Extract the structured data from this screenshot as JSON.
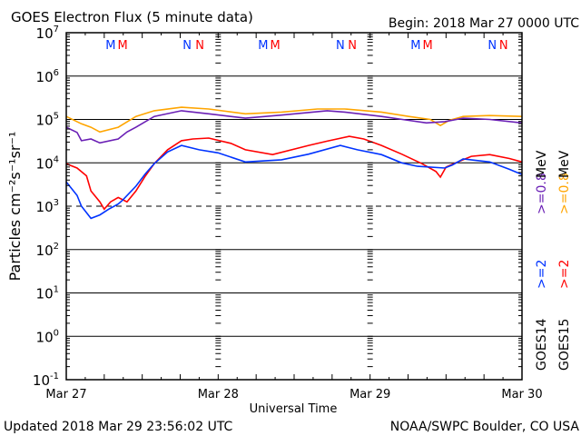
{
  "chart_data": {
    "type": "line",
    "title": "GOES Electron Flux (5 minute data)",
    "begin": "Begin: 2018 Mar 27 0000 UTC",
    "xlabel": "Universal Time",
    "ylabel": "Particles cm⁻²s⁻¹sr⁻¹",
    "x_unit": "hours since begin",
    "xlim": [
      0,
      72
    ],
    "ylim_log10": [
      -1,
      7
    ],
    "yscale": "log",
    "x_ticks": [
      {
        "hour": 0,
        "label": "Mar 27"
      },
      {
        "hour": 24,
        "label": "Mar 28"
      },
      {
        "hour": 48,
        "label": "Mar 29"
      },
      {
        "hour": 72,
        "label": "Mar 30"
      }
    ],
    "y_ticks": [
      {
        "exp": 7,
        "base": "10",
        "sup": "7"
      },
      {
        "exp": 6,
        "base": "10",
        "sup": "6"
      },
      {
        "exp": 5,
        "base": "10",
        "sup": "5"
      },
      {
        "exp": 4,
        "base": "10",
        "sup": "4"
      },
      {
        "exp": 3,
        "base": "10",
        "sup": "3"
      },
      {
        "exp": 2,
        "base": "10",
        "sup": "2"
      },
      {
        "exp": 1,
        "base": "10",
        "sup": "1"
      },
      {
        "exp": 0,
        "base": "10",
        "sup": "0"
      },
      {
        "exp": -1,
        "base": "10",
        "sup": "-1"
      }
    ],
    "threshold_log10": 3,
    "series": [
      {
        "name": "GOES15 >=0.8 MeV",
        "color": "#ffa500",
        "points": [
          [
            0,
            5.07
          ],
          [
            2.4,
            4.9
          ],
          [
            3.9,
            4.82
          ],
          [
            5.3,
            4.71
          ],
          [
            8.2,
            4.82
          ],
          [
            11,
            5.07
          ],
          [
            13.9,
            5.2
          ],
          [
            18.2,
            5.28
          ],
          [
            22.5,
            5.24
          ],
          [
            28.3,
            5.13
          ],
          [
            34,
            5.17
          ],
          [
            39.7,
            5.24
          ],
          [
            44,
            5.24
          ],
          [
            49.8,
            5.17
          ],
          [
            54.1,
            5.07
          ],
          [
            57.5,
            5.0
          ],
          [
            59.1,
            4.86
          ],
          [
            60.5,
            4.98
          ],
          [
            62.7,
            5.07
          ],
          [
            66.9,
            5.09
          ],
          [
            72,
            5.07
          ]
        ]
      },
      {
        "name": "GOES14 >=0.8 MeV",
        "color": "#6a1fb5",
        "points": [
          [
            0,
            4.82
          ],
          [
            1.7,
            4.7
          ],
          [
            2.4,
            4.51
          ],
          [
            3.9,
            4.55
          ],
          [
            5.3,
            4.46
          ],
          [
            8.2,
            4.55
          ],
          [
            9.6,
            4.71
          ],
          [
            11,
            4.82
          ],
          [
            13.9,
            5.07
          ],
          [
            18.2,
            5.2
          ],
          [
            22.5,
            5.13
          ],
          [
            28.3,
            5.03
          ],
          [
            34,
            5.1
          ],
          [
            41.2,
            5.2
          ],
          [
            44,
            5.17
          ],
          [
            49.8,
            5.07
          ],
          [
            54.1,
            4.98
          ],
          [
            56.9,
            4.92
          ],
          [
            59.8,
            4.95
          ],
          [
            62.7,
            5.03
          ],
          [
            66.9,
            5.0
          ],
          [
            72,
            4.92
          ]
        ]
      },
      {
        "name": "GOES15 >=2 MeV",
        "color": "#ff0000",
        "points": [
          [
            0,
            3.98
          ],
          [
            1.7,
            3.88
          ],
          [
            3.2,
            3.7
          ],
          [
            3.9,
            3.35
          ],
          [
            5.3,
            3.1
          ],
          [
            6.0,
            2.93
          ],
          [
            7,
            3.1
          ],
          [
            8.2,
            3.2
          ],
          [
            9.6,
            3.1
          ],
          [
            11,
            3.35
          ],
          [
            12.5,
            3.7
          ],
          [
            13.9,
            3.98
          ],
          [
            16,
            4.3
          ],
          [
            18.2,
            4.51
          ],
          [
            20,
            4.55
          ],
          [
            22.5,
            4.57
          ],
          [
            26,
            4.45
          ],
          [
            28.3,
            4.3
          ],
          [
            32.6,
            4.19
          ],
          [
            38.3,
            4.4
          ],
          [
            41.2,
            4.5
          ],
          [
            44.7,
            4.61
          ],
          [
            47,
            4.55
          ],
          [
            49.8,
            4.4
          ],
          [
            53,
            4.2
          ],
          [
            56.2,
            3.98
          ],
          [
            58.4,
            3.8
          ],
          [
            59.1,
            3.67
          ],
          [
            60,
            3.9
          ],
          [
            61.2,
            3.98
          ],
          [
            64,
            4.15
          ],
          [
            66.9,
            4.19
          ],
          [
            70,
            4.1
          ],
          [
            72,
            4.02
          ]
        ]
      },
      {
        "name": "GOES14 >=2 MeV",
        "color": "#0033ff",
        "points": [
          [
            0,
            3.56
          ],
          [
            1.7,
            3.25
          ],
          [
            2.4,
            3.0
          ],
          [
            3.9,
            2.72
          ],
          [
            5.3,
            2.8
          ],
          [
            6.7,
            2.93
          ],
          [
            8.2,
            3.05
          ],
          [
            8.9,
            3.14
          ],
          [
            11,
            3.46
          ],
          [
            12.5,
            3.75
          ],
          [
            13.9,
            3.98
          ],
          [
            16,
            4.25
          ],
          [
            18.2,
            4.4
          ],
          [
            21,
            4.3
          ],
          [
            24,
            4.23
          ],
          [
            28.3,
            4.02
          ],
          [
            34,
            4.07
          ],
          [
            38.3,
            4.2
          ],
          [
            43.3,
            4.4
          ],
          [
            46,
            4.3
          ],
          [
            49.8,
            4.19
          ],
          [
            53,
            4.0
          ],
          [
            55.5,
            3.92
          ],
          [
            59.8,
            3.88
          ],
          [
            61,
            3.95
          ],
          [
            62.7,
            4.09
          ],
          [
            66.9,
            4.02
          ],
          [
            70,
            3.85
          ],
          [
            72,
            3.73
          ]
        ]
      }
    ],
    "legend": [
      {
        "text": "GOES14",
        "color": "#000000"
      },
      {
        "text": ">=2",
        "color": "#0033ff"
      },
      {
        "text": ">=0.8",
        "color": "#6a1fb5"
      },
      {
        "text": "MeV",
        "color": "#000000"
      },
      {
        "text": "GOES15",
        "color": "#000000"
      },
      {
        "text": ">=2",
        "color": "#ff0000"
      },
      {
        "text": ">=0.8",
        "color": "#ffa500"
      },
      {
        "text": "MeV",
        "color": "#000000"
      }
    ],
    "annotations": [
      {
        "text": "M",
        "hour": 7.0,
        "color": "#0033ff"
      },
      {
        "text": "M",
        "hour": 8.9,
        "color": "#ff0000"
      },
      {
        "text": "N",
        "hour": 19.1,
        "color": "#0033ff"
      },
      {
        "text": "N",
        "hour": 21.1,
        "color": "#ff0000"
      },
      {
        "text": "M",
        "hour": 31.1,
        "color": "#0033ff"
      },
      {
        "text": "M",
        "hour": 33.0,
        "color": "#ff0000"
      },
      {
        "text": "N",
        "hour": 43.3,
        "color": "#0033ff"
      },
      {
        "text": "N",
        "hour": 45.2,
        "color": "#ff0000"
      },
      {
        "text": "M",
        "hour": 55.2,
        "color": "#0033ff"
      },
      {
        "text": "M",
        "hour": 57.1,
        "color": "#ff0000"
      },
      {
        "text": "N",
        "hour": 67.3,
        "color": "#0033ff"
      },
      {
        "text": "N",
        "hour": 69.1,
        "color": "#ff0000"
      }
    ]
  },
  "footer": {
    "updated": "Updated 2018 Mar 29 23:56:02 UTC",
    "credit": "NOAA/SWPC Boulder, CO USA"
  }
}
